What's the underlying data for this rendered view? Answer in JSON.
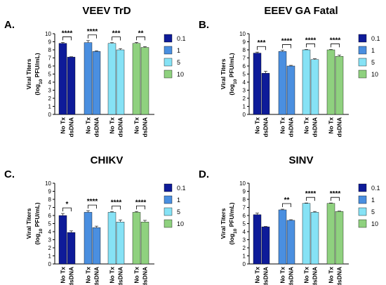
{
  "chart_data": [
    {
      "type": "bar",
      "panel_letter": "A.",
      "title": "VEEV TrD",
      "ylabel_line1": "Viral Titers",
      "ylabel_line2_parts": [
        "(log",
        "10",
        " PFU/mL)"
      ],
      "ylim": [
        0,
        10
      ],
      "yticks": [
        "0",
        "1",
        "2",
        "3",
        "4",
        "5",
        "6",
        "7",
        "8",
        "9",
        "10"
      ],
      "categories": [
        "No Tx",
        "dsDNA"
      ],
      "series": [
        {
          "name": "0.1",
          "values": [
            8.8,
            7.1
          ],
          "errors": [
            0.12,
            0.05
          ]
        },
        {
          "name": "1",
          "values": [
            8.9,
            7.8
          ],
          "errors": [
            0.25,
            0.08
          ]
        },
        {
          "name": "5",
          "values": [
            8.8,
            8.0
          ],
          "errors": [
            0.1,
            0.15
          ]
        },
        {
          "name": "10",
          "values": [
            8.8,
            8.3
          ],
          "errors": [
            0.12,
            0.1
          ]
        }
      ],
      "significance": [
        "****",
        "****",
        "***",
        "**"
      ]
    },
    {
      "type": "bar",
      "panel_letter": "B.",
      "title": "EEEV GA Fatal",
      "ylabel_line1": "Viral Titers",
      "ylabel_line2_parts": [
        "(log",
        "10",
        " PFU/mL)"
      ],
      "ylim": [
        0,
        10
      ],
      "yticks": [
        "0",
        "1",
        "2",
        "3",
        "4",
        "5",
        "6",
        "7",
        "8",
        "9",
        "10"
      ],
      "categories": [
        "No Tx",
        "dsDNA"
      ],
      "series": [
        {
          "name": "0.1",
          "values": [
            7.6,
            5.1
          ],
          "errors": [
            0.12,
            0.25
          ]
        },
        {
          "name": "1",
          "values": [
            7.8,
            6.0
          ],
          "errors": [
            0.15,
            0.08
          ]
        },
        {
          "name": "5",
          "values": [
            8.0,
            6.8
          ],
          "errors": [
            0.05,
            0.1
          ]
        },
        {
          "name": "10",
          "values": [
            8.0,
            7.2
          ],
          "errors": [
            0.05,
            0.15
          ]
        }
      ],
      "significance": [
        "***",
        "****",
        "****",
        "****"
      ]
    },
    {
      "type": "bar",
      "panel_letter": "C.",
      "title": "CHIKV",
      "ylabel_line1": "Viral Titers",
      "ylabel_line2_parts": [
        "(log",
        "10",
        " PFU/mL)"
      ],
      "ylim": [
        0,
        10
      ],
      "yticks": [
        "0",
        "1",
        "2",
        "3",
        "4",
        "5",
        "6",
        "7",
        "8",
        "9",
        "10"
      ],
      "categories": [
        "No Tx",
        "dsDNA"
      ],
      "series": [
        {
          "name": "0.1",
          "values": [
            6.0,
            3.9
          ],
          "errors": [
            0.25,
            0.2
          ]
        },
        {
          "name": "1",
          "values": [
            6.4,
            4.5
          ],
          "errors": [
            0.2,
            0.18
          ]
        },
        {
          "name": "5",
          "values": [
            6.4,
            5.2
          ],
          "errors": [
            0.08,
            0.25
          ]
        },
        {
          "name": "10",
          "values": [
            6.4,
            5.2
          ],
          "errors": [
            0.1,
            0.2
          ]
        }
      ],
      "significance": [
        "*",
        "****",
        "****",
        "****"
      ]
    },
    {
      "type": "bar",
      "panel_letter": "D.",
      "title": "SINV",
      "ylabel_line1": "Viral Titers",
      "ylabel_line2_parts": [
        "(log",
        "10",
        " PFU/mL)"
      ],
      "ylim": [
        0,
        10
      ],
      "yticks": [
        "0",
        "1",
        "2",
        "3",
        "4",
        "5",
        "6",
        "7",
        "8",
        "9",
        "10"
      ],
      "categories": [
        "No Tx",
        "dsDNA"
      ],
      "series": [
        {
          "name": "0.1",
          "values": [
            6.1,
            4.6
          ],
          "errors": [
            0.2,
            0.05
          ]
        },
        {
          "name": "1",
          "values": [
            6.7,
            5.4
          ],
          "errors": [
            0.08,
            0.08
          ]
        },
        {
          "name": "5",
          "values": [
            7.5,
            6.4
          ],
          "errors": [
            0.05,
            0.1
          ]
        },
        {
          "name": "10",
          "values": [
            7.5,
            6.5
          ],
          "errors": [
            0.05,
            0.05
          ]
        }
      ],
      "significance": [
        "",
        "**",
        "****",
        "****"
      ]
    }
  ],
  "legend_colors": [
    "#0e1b99",
    "#4a8fe0",
    "#86e2f5",
    "#8fd17f"
  ],
  "axis_color": "#000000",
  "error_color": "#333333"
}
